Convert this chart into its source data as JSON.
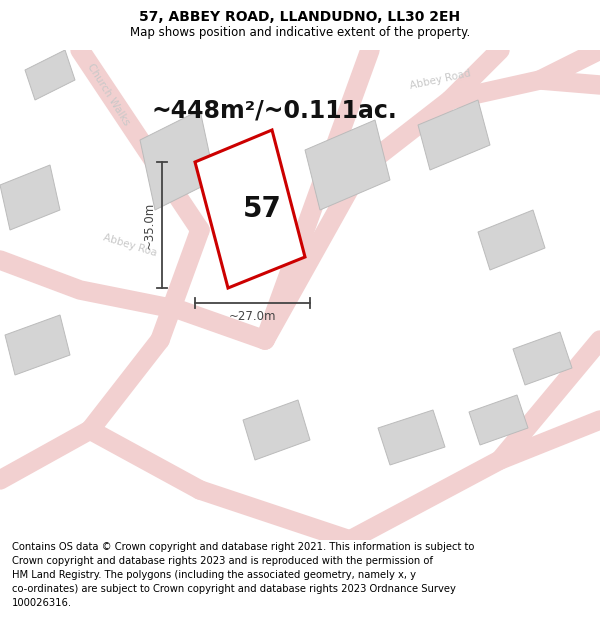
{
  "title": "57, ABBEY ROAD, LLANDUDNO, LL30 2EH",
  "subtitle": "Map shows position and indicative extent of the property.",
  "area_label": "~448m²/~0.111ac.",
  "number_label": "57",
  "dim_width": "~27.0m",
  "dim_height": "~35.0m",
  "road_label_church": "Church Walks",
  "road_label_abbey1": "Abbey Roa",
  "road_label_abbey2": "Abbey Road",
  "footer_text": "Contains OS data © Crown copyright and database right 2021. This information is subject to\nCrown copyright and database rights 2023 and is reproduced with the permission of\nHM Land Registry. The polygons (including the associated geometry, namely x, y\nco-ordinates) are subject to Crown copyright and database rights 2023 Ordnance Survey\n100026316.",
  "bg_color": "#ffffff",
  "map_bg": "#faf5f5",
  "road_fill": "#f2d0d0",
  "road_edge": "#e8b8b8",
  "building_fill": "#d4d4d4",
  "building_edge": "#bbbbbb",
  "plot_fill": "#ffffff",
  "plot_edge": "#cc0000",
  "dim_color": "#444444",
  "label_color": "#c8c8c8",
  "title_fontsize": 10,
  "subtitle_fontsize": 8.5,
  "area_fontsize": 17,
  "number_fontsize": 20,
  "dim_fontsize": 8.5,
  "road_label_fontsize": 7.5,
  "footer_fontsize": 7.2
}
